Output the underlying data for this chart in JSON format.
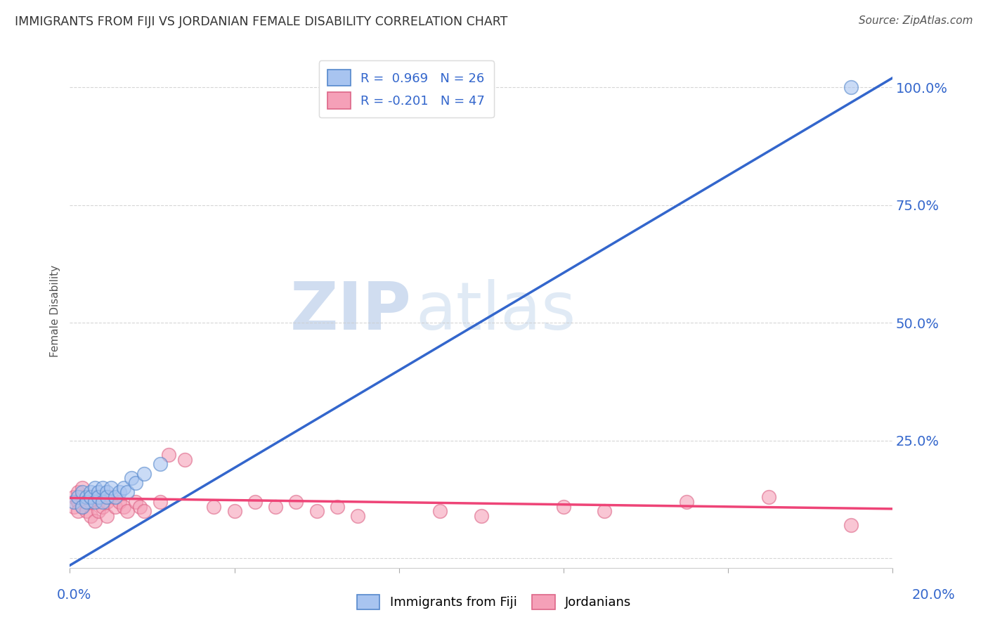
{
  "title": "IMMIGRANTS FROM FIJI VS JORDANIAN FEMALE DISABILITY CORRELATION CHART",
  "source": "Source: ZipAtlas.com",
  "ylabel": "Female Disability",
  "ytick_labels": [
    "",
    "25.0%",
    "50.0%",
    "75.0%",
    "100.0%"
  ],
  "ytick_positions": [
    0.0,
    0.25,
    0.5,
    0.75,
    1.0
  ],
  "xtick_positions": [
    0.0,
    0.04,
    0.08,
    0.12,
    0.16,
    0.2
  ],
  "xlim": [
    0.0,
    0.2
  ],
  "ylim": [
    -0.02,
    1.07
  ],
  "legend1_r": "0.969",
  "legend1_n": "26",
  "legend2_r": "-0.201",
  "legend2_n": "47",
  "blue_fill": "#A8C4F0",
  "blue_edge": "#5588CC",
  "pink_fill": "#F5A0B8",
  "pink_edge": "#DD6688",
  "line_blue": "#3366CC",
  "line_pink": "#EE4477",
  "watermark_zip": "ZIP",
  "watermark_atlas": "atlas",
  "fiji_scatter_x": [
    0.001,
    0.002,
    0.003,
    0.003,
    0.004,
    0.004,
    0.005,
    0.005,
    0.006,
    0.006,
    0.007,
    0.007,
    0.008,
    0.008,
    0.009,
    0.009,
    0.01,
    0.011,
    0.012,
    0.013,
    0.014,
    0.015,
    0.016,
    0.018,
    0.022,
    0.19
  ],
  "fiji_scatter_y": [
    0.12,
    0.13,
    0.11,
    0.14,
    0.13,
    0.12,
    0.14,
    0.13,
    0.15,
    0.12,
    0.14,
    0.13,
    0.15,
    0.12,
    0.14,
    0.13,
    0.15,
    0.13,
    0.14,
    0.15,
    0.14,
    0.17,
    0.16,
    0.18,
    0.2,
    1.0
  ],
  "jordan_scatter_x": [
    0.001,
    0.001,
    0.002,
    0.002,
    0.002,
    0.003,
    0.003,
    0.003,
    0.004,
    0.004,
    0.005,
    0.005,
    0.005,
    0.006,
    0.006,
    0.007,
    0.007,
    0.008,
    0.008,
    0.009,
    0.009,
    0.01,
    0.011,
    0.012,
    0.013,
    0.014,
    0.016,
    0.017,
    0.018,
    0.022,
    0.024,
    0.028,
    0.035,
    0.04,
    0.045,
    0.05,
    0.055,
    0.06,
    0.065,
    0.07,
    0.09,
    0.1,
    0.12,
    0.13,
    0.15,
    0.17,
    0.19
  ],
  "jordan_scatter_y": [
    0.13,
    0.11,
    0.14,
    0.12,
    0.1,
    0.13,
    0.11,
    0.15,
    0.12,
    0.1,
    0.13,
    0.12,
    0.09,
    0.13,
    0.08,
    0.12,
    0.1,
    0.13,
    0.11,
    0.12,
    0.09,
    0.13,
    0.11,
    0.12,
    0.11,
    0.1,
    0.12,
    0.11,
    0.1,
    0.12,
    0.22,
    0.21,
    0.11,
    0.1,
    0.12,
    0.11,
    0.12,
    0.1,
    0.11,
    0.09,
    0.1,
    0.09,
    0.11,
    0.1,
    0.12,
    0.13,
    0.07
  ],
  "blue_trendline_x": [
    0.0,
    0.2
  ],
  "blue_trendline_y": [
    -0.015,
    1.02
  ],
  "pink_trendline_x": [
    0.0,
    0.2
  ],
  "pink_trendline_y": [
    0.128,
    0.105
  ],
  "marker_size": 200,
  "background_color": "#FFFFFF",
  "grid_color": "#CCCCCC",
  "axis_label_color": "#3366CC",
  "title_color": "#333333",
  "legend_label_color": "#3366CC"
}
